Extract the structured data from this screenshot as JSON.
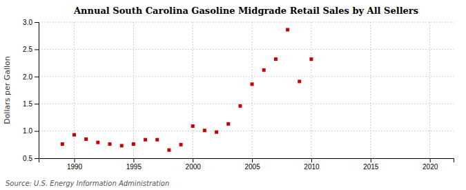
{
  "chart_data": {
    "type": "scatter",
    "title": "Annual South Carolina Gasoline Midgrade Retail Sales by All Sellers",
    "y_label": "Dollars per Gallon",
    "annotations": [
      "Source: U.S. Energy Information Administration"
    ],
    "x": [
      1989,
      1990,
      1991,
      1992,
      1993,
      1994,
      1995,
      1996,
      1997,
      1998,
      1999,
      2000,
      2001,
      2002,
      2003,
      2004,
      2005,
      2006,
      2007,
      2008,
      2009,
      2010
    ],
    "values": [
      0.76,
      0.93,
      0.85,
      0.79,
      0.76,
      0.73,
      0.76,
      0.84,
      0.84,
      0.65,
      0.75,
      1.09,
      1.01,
      0.98,
      1.13,
      1.46,
      1.86,
      2.12,
      2.32,
      2.86,
      1.91,
      2.32
    ],
    "color": "#cc0000",
    "marker": "square",
    "xlim": [
      1987,
      2022
    ],
    "ylim": [
      0.5,
      3.0
    ],
    "xticks": [
      1990,
      1995,
      2000,
      2005,
      2010,
      2015,
      2020
    ],
    "yticks": [
      0.5,
      {
        "value": 1.0,
        "label": "1.0"
      },
      1.5,
      {
        "value": 2.0,
        "label": "2.0"
      },
      2.5,
      {
        "value": 3.0,
        "label": "3.0"
      }
    ],
    "grid": true
  }
}
